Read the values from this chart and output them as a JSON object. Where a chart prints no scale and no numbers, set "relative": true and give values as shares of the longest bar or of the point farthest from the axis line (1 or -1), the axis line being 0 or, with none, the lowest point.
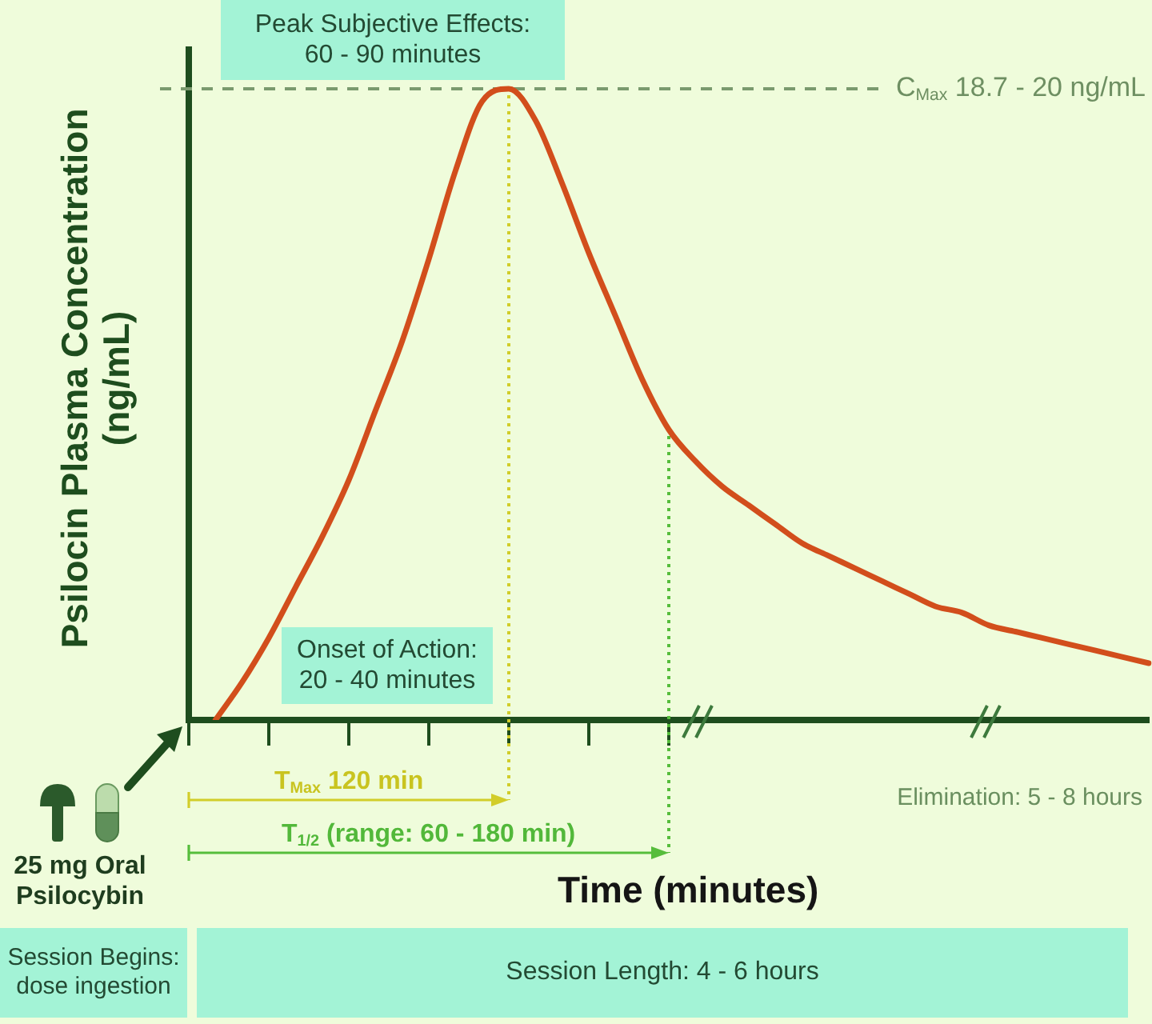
{
  "chart_data": {
    "type": "line",
    "xlabel": "Time (minutes)",
    "ylabel": "Psilocin Plasma Concentration (ng/mL)",
    "relative": true,
    "categories": [
      null,
      null,
      null,
      null,
      null,
      null,
      null,
      null,
      null,
      null,
      null,
      null,
      null,
      null,
      null,
      null,
      null,
      null,
      null,
      null,
      null,
      null,
      null,
      null,
      null,
      null,
      null,
      null,
      null,
      null,
      null,
      null,
      null,
      null,
      null,
      null,
      null
    ],
    "values": [
      null,
      0,
      0.06,
      0.13,
      0.21,
      0.29,
      0.38,
      0.49,
      0.6,
      0.73,
      0.87,
      0.98,
      1,
      0.95,
      0.85,
      0.74,
      0.64,
      0.54,
      0.46,
      0.41,
      0.37,
      0.34,
      0.31,
      0.28,
      0.26,
      0.24,
      0.22,
      0.2,
      0.18,
      0.17,
      0.15,
      0.14,
      0.13,
      0.12,
      0.11,
      0.1,
      0.09
    ],
    "color": "#d24e1c",
    "annotations": [
      "Peak Subjective Effects:\n60 - 90 minutes",
      "Onset of Action:\n20 - 40 minutes",
      "C$_{Max}$ 18.7 - 20 ng/mL",
      "T$_{Max}$ 120 min",
      "T$_{1/2}$ (range: 60 - 180 min)",
      "Elimination: 5 - 8 hours",
      "25 mg Oral\nPsilocybin",
      "Session Begins:\ndose ingestion",
      "Session Length: 4 - 6 hours"
    ]
  }
}
